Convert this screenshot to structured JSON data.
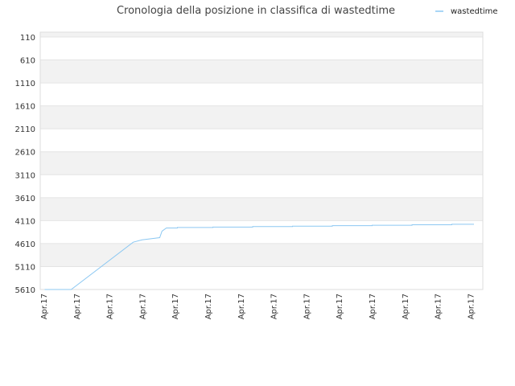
{
  "chart_data": {
    "type": "line",
    "title": "Cronologia della posizione in classifica di wastedtime",
    "xlabel": "",
    "ylabel": "",
    "y_inverted": true,
    "ylim": [
      110,
      5610
    ],
    "y_ticks": [
      "110",
      "610",
      "1110",
      "1610",
      "2110",
      "2610",
      "3110",
      "3610",
      "4110",
      "4610",
      "5110",
      "5610"
    ],
    "x_ticks": [
      "Apr.17",
      "Apr.17",
      "Apr.17",
      "Apr.17",
      "Apr.17",
      "Apr.17",
      "Apr.17",
      "Apr.17",
      "Apr.17",
      "Apr.17",
      "Apr.17",
      "Apr.17",
      "Apr.17",
      "Apr.17"
    ],
    "x_range": [
      0,
      1
    ],
    "grid": true,
    "legend_position": "top-right",
    "colors": {
      "line": "#8cc8f2",
      "band": "#f2f2f2",
      "grid": "#e4e4e4",
      "axis": "#dddddd"
    },
    "series": [
      {
        "name": "wastedtime",
        "x": [
          0.01,
          0.07,
          0.21,
          0.23,
          0.27,
          0.275,
          0.285,
          0.31,
          0.31,
          0.39,
          0.39,
          0.48,
          0.48,
          0.57,
          0.57,
          0.66,
          0.66,
          0.75,
          0.75,
          0.84,
          0.84,
          0.93,
          0.93,
          0.98
        ],
        "values": [
          5610,
          5610,
          4580,
          4530,
          4480,
          4340,
          4270,
          4270,
          4260,
          4260,
          4250,
          4250,
          4240,
          4240,
          4230,
          4230,
          4220,
          4220,
          4210,
          4210,
          4200,
          4200,
          4190,
          4190
        ]
      }
    ]
  }
}
